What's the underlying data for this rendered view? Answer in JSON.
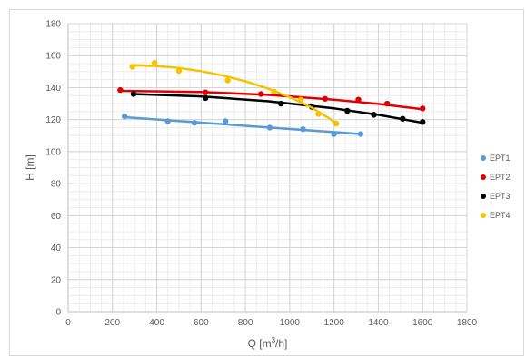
{
  "chart_data": {
    "type": "scatter",
    "title": "",
    "xlabel_main": "Q [m",
    "xlabel_sup": "3",
    "xlabel_end": "/h]",
    "ylabel": "H [m]",
    "xlim": [
      0,
      1800
    ],
    "ylim": [
      0,
      180
    ],
    "x_major_step": 200,
    "y_major_step": 20,
    "x_minor_step": 50,
    "y_minor_step": 5,
    "grid": true,
    "legend_position": "right",
    "series": [
      {
        "name": "EPT1",
        "color": "#5b9bd5",
        "points": [
          [
            255,
            122
          ],
          [
            450,
            119
          ],
          [
            570,
            118
          ],
          [
            710,
            119
          ],
          [
            910,
            115
          ],
          [
            1060,
            114
          ],
          [
            1200,
            111
          ],
          [
            1320,
            111
          ]
        ],
        "trend": [
          [
            255,
            121.5
          ],
          [
            1320,
            111
          ]
        ]
      },
      {
        "name": "EPT2",
        "color": "#e00000",
        "points": [
          [
            235,
            138.5
          ],
          [
            620,
            137
          ],
          [
            870,
            136
          ],
          [
            1160,
            133
          ],
          [
            1310,
            132.5
          ],
          [
            1440,
            130
          ],
          [
            1600,
            127
          ]
        ],
        "trend": [
          [
            235,
            138
          ],
          [
            600,
            137.3
          ],
          [
            900,
            135.5
          ],
          [
            1200,
            132.5
          ],
          [
            1400,
            129.8
          ],
          [
            1600,
            126.5
          ]
        ]
      },
      {
        "name": "EPT3",
        "color": "#000000",
        "points": [
          [
            295,
            136
          ],
          [
            620,
            133.5
          ],
          [
            960,
            130
          ],
          [
            1100,
            128
          ],
          [
            1260,
            125.5
          ],
          [
            1380,
            123
          ],
          [
            1510,
            120.5
          ],
          [
            1600,
            118.5
          ]
        ],
        "trend": [
          [
            295,
            136
          ],
          [
            600,
            134.5
          ],
          [
            900,
            131.5
          ],
          [
            1200,
            127
          ],
          [
            1400,
            123
          ],
          [
            1600,
            118
          ]
        ]
      },
      {
        "name": "EPT4",
        "color": "#f5c200",
        "points": [
          [
            290,
            153
          ],
          [
            390,
            155.5
          ],
          [
            500,
            150.5
          ],
          [
            720,
            144.5
          ],
          [
            930,
            137.5
          ],
          [
            1050,
            132.5
          ],
          [
            1130,
            123.5
          ],
          [
            1210,
            117.5
          ]
        ],
        "trend": [
          [
            290,
            154
          ],
          [
            400,
            153.5
          ],
          [
            500,
            152.3
          ],
          [
            600,
            150.3
          ],
          [
            700,
            147.5
          ],
          [
            800,
            144
          ],
          [
            900,
            139.5
          ],
          [
            1000,
            134
          ],
          [
            1100,
            127.5
          ],
          [
            1210,
            118
          ]
        ]
      }
    ]
  }
}
